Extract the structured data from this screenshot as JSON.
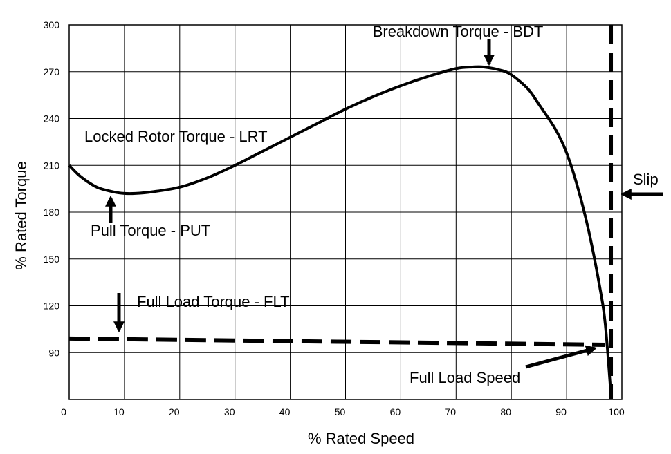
{
  "chart_data": {
    "type": "line",
    "xlabel": "% Rated Speed",
    "ylabel": "% Rated Torque",
    "xlim": [
      0,
      100
    ],
    "ylim": [
      60,
      300
    ],
    "x_ticks": [
      0,
      10,
      20,
      30,
      40,
      50,
      60,
      70,
      80,
      90,
      100
    ],
    "y_ticks": [
      90,
      120,
      150,
      180,
      210,
      240,
      270,
      300
    ],
    "grid": true,
    "series": [
      {
        "x": [
          0,
          2,
          5,
          8,
          10,
          12,
          15,
          20,
          25,
          30,
          35,
          40,
          45,
          50,
          55,
          60,
          65,
          70,
          73,
          75,
          78,
          80,
          83,
          85,
          88,
          90,
          92,
          94,
          96,
          97,
          98
        ],
        "y": [
          210,
          203,
          196,
          193,
          192,
          192,
          193,
          196,
          202,
          210,
          219,
          228,
          237,
          246,
          254,
          261,
          267,
          272,
          273,
          273,
          271,
          268,
          259,
          249,
          233,
          218,
          196,
          168,
          132,
          108,
          64
        ],
        "style": "solid"
      },
      {
        "x": [
          0,
          97
        ],
        "y": [
          99,
          95
        ],
        "style": "dashed"
      }
    ],
    "reference_line": {
      "x": 98,
      "style": "dashed"
    },
    "annotations": [
      {
        "text": "Breakdown Torque - BDT"
      },
      {
        "text": "Locked Rotor Torque - LRT"
      },
      {
        "text": "Pull Torque - PUT"
      },
      {
        "text": "Full Load Torque - FLT"
      },
      {
        "text": "Slip"
      },
      {
        "text": "Full Load Speed"
      }
    ]
  }
}
